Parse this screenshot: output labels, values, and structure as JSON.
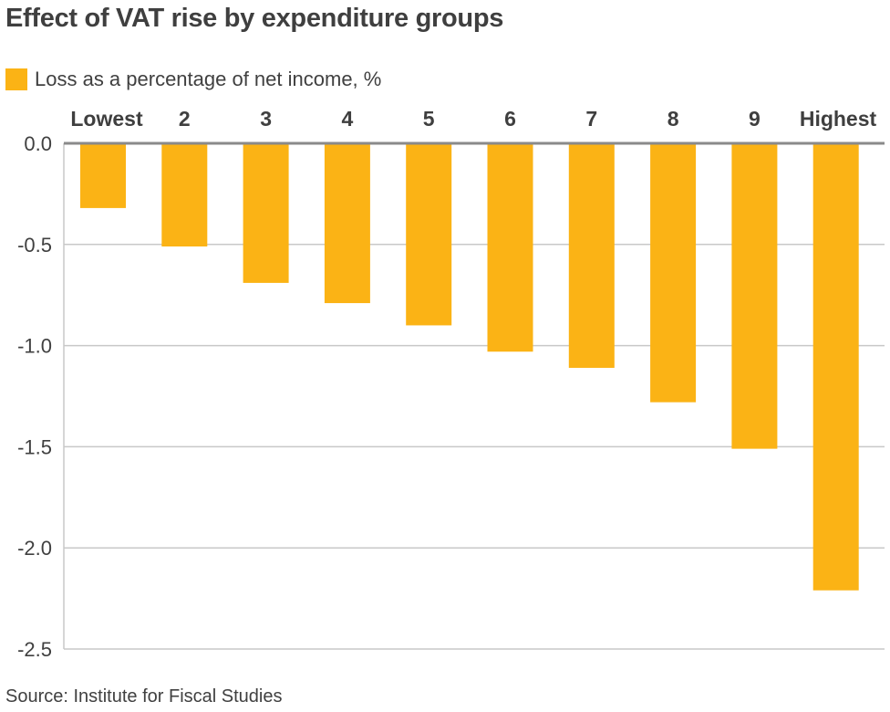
{
  "chart_data": {
    "type": "bar",
    "title": "Effect of VAT rise by expenditure groups",
    "legend": {
      "label": "Loss as a percentage of net income, %",
      "placement": "top-left"
    },
    "categories": [
      "Lowest",
      "2",
      "3",
      "4",
      "5",
      "6",
      "7",
      "8",
      "9",
      "Highest"
    ],
    "series": [
      {
        "name": "Loss as a percentage of net income, %",
        "values": [
          -0.32,
          -0.51,
          -0.69,
          -0.79,
          -0.9,
          -1.03,
          -1.11,
          -1.28,
          -1.51,
          -2.21
        ],
        "color": "#fbb315"
      }
    ],
    "xlabel": "",
    "ylabel": "",
    "ylim": [
      -2.5,
      0
    ],
    "yticks": [
      "0.0",
      "-0.5",
      "-1.0",
      "-1.5",
      "-2.0",
      "-2.5"
    ],
    "ytick_values": [
      0,
      -0.5,
      -1.0,
      -1.5,
      -2.0,
      -2.5
    ],
    "x_axis_position": "top",
    "grid": true,
    "source": "Source: Institute for Fiscal Studies"
  }
}
